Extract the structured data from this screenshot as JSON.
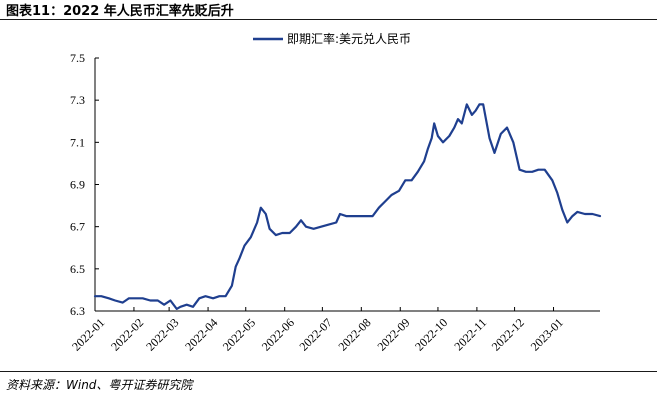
{
  "header": {
    "title": "图表11：2022 年人民币汇率先贬后升"
  },
  "footer": {
    "source": "资料来源：Wind、粤开证券研究院"
  },
  "colors": {
    "series": "#1f3f8f",
    "axis": "#000000"
  },
  "chart_data": {
    "type": "line",
    "title": "图表11：2022 年人民币汇率先贬后升",
    "xlabel": "",
    "ylabel": "",
    "ylim": [
      6.3,
      7.5
    ],
    "yticks": [
      "6.3",
      "6.5",
      "6.7",
      "6.9",
      "7.1",
      "7.3",
      "7.5"
    ],
    "xlim": [
      "2022-01-01",
      "2023-02-07"
    ],
    "xticks": [
      "2022-01",
      "2022-02",
      "2022-03",
      "2022-04",
      "2022-05",
      "2022-06",
      "2022-07",
      "2022-08",
      "2022-09",
      "2022-10",
      "2022-11",
      "2022-12",
      "2023-01"
    ],
    "grid": false,
    "legend": "top-center",
    "series": [
      {
        "name": "即期汇率:美元兑人民币",
        "points": [
          [
            "2022-01-01",
            6.37
          ],
          [
            "2022-01-06",
            6.37
          ],
          [
            "2022-01-12",
            6.36
          ],
          [
            "2022-01-17",
            6.35
          ],
          [
            "2022-01-23",
            6.34
          ],
          [
            "2022-01-28",
            6.36
          ],
          [
            "2022-01-31",
            6.36
          ],
          [
            "2022-02-08",
            6.36
          ],
          [
            "2022-02-14",
            6.35
          ],
          [
            "2022-02-20",
            6.35
          ],
          [
            "2022-02-25",
            6.33
          ],
          [
            "2022-03-02",
            6.35
          ],
          [
            "2022-03-07",
            6.31
          ],
          [
            "2022-03-10",
            6.32
          ],
          [
            "2022-03-15",
            6.33
          ],
          [
            "2022-03-20",
            6.32
          ],
          [
            "2022-03-25",
            6.36
          ],
          [
            "2022-03-30",
            6.37
          ],
          [
            "2022-04-05",
            6.36
          ],
          [
            "2022-04-10",
            6.37
          ],
          [
            "2022-04-15",
            6.37
          ],
          [
            "2022-04-20",
            6.42
          ],
          [
            "2022-04-23",
            6.51
          ],
          [
            "2022-04-26",
            6.55
          ],
          [
            "2022-04-30",
            6.61
          ],
          [
            "2022-05-05",
            6.65
          ],
          [
            "2022-05-10",
            6.72
          ],
          [
            "2022-05-13",
            6.79
          ],
          [
            "2022-05-17",
            6.76
          ],
          [
            "2022-05-20",
            6.69
          ],
          [
            "2022-05-25",
            6.66
          ],
          [
            "2022-05-30",
            6.67
          ],
          [
            "2022-06-05",
            6.67
          ],
          [
            "2022-06-10",
            6.7
          ],
          [
            "2022-06-14",
            6.73
          ],
          [
            "2022-06-18",
            6.7
          ],
          [
            "2022-06-24",
            6.69
          ],
          [
            "2022-06-30",
            6.7
          ],
          [
            "2022-07-06",
            6.71
          ],
          [
            "2022-07-12",
            6.72
          ],
          [
            "2022-07-15",
            6.76
          ],
          [
            "2022-07-20",
            6.75
          ],
          [
            "2022-07-25",
            6.75
          ],
          [
            "2022-07-31",
            6.75
          ],
          [
            "2022-08-05",
            6.75
          ],
          [
            "2022-08-10",
            6.75
          ],
          [
            "2022-08-15",
            6.79
          ],
          [
            "2022-08-20",
            6.82
          ],
          [
            "2022-08-25",
            6.85
          ],
          [
            "2022-08-31",
            6.87
          ],
          [
            "2022-09-05",
            6.92
          ],
          [
            "2022-09-10",
            6.92
          ],
          [
            "2022-09-15",
            6.96
          ],
          [
            "2022-09-20",
            7.01
          ],
          [
            "2022-09-23",
            7.07
          ],
          [
            "2022-09-26",
            7.12
          ],
          [
            "2022-09-28",
            7.19
          ],
          [
            "2022-10-01",
            7.13
          ],
          [
            "2022-10-05",
            7.1
          ],
          [
            "2022-10-10",
            7.13
          ],
          [
            "2022-10-14",
            7.17
          ],
          [
            "2022-10-17",
            7.21
          ],
          [
            "2022-10-20",
            7.19
          ],
          [
            "2022-10-24",
            7.28
          ],
          [
            "2022-10-28",
            7.23
          ],
          [
            "2022-10-31",
            7.25
          ],
          [
            "2022-11-03",
            7.28
          ],
          [
            "2022-11-06",
            7.28
          ],
          [
            "2022-11-11",
            7.12
          ],
          [
            "2022-11-15",
            7.05
          ],
          [
            "2022-11-20",
            7.14
          ],
          [
            "2022-11-25",
            7.17
          ],
          [
            "2022-11-30",
            7.1
          ],
          [
            "2022-12-05",
            6.97
          ],
          [
            "2022-12-10",
            6.96
          ],
          [
            "2022-12-15",
            6.96
          ],
          [
            "2022-12-20",
            6.97
          ],
          [
            "2022-12-25",
            6.97
          ],
          [
            "2022-12-31",
            6.92
          ],
          [
            "2023-01-04",
            6.86
          ],
          [
            "2023-01-08",
            6.78
          ],
          [
            "2023-01-12",
            6.72
          ],
          [
            "2023-01-16",
            6.75
          ],
          [
            "2023-01-20",
            6.77
          ],
          [
            "2023-01-26",
            6.76
          ],
          [
            "2023-02-01",
            6.76
          ],
          [
            "2023-02-07",
            6.75
          ]
        ]
      }
    ]
  }
}
